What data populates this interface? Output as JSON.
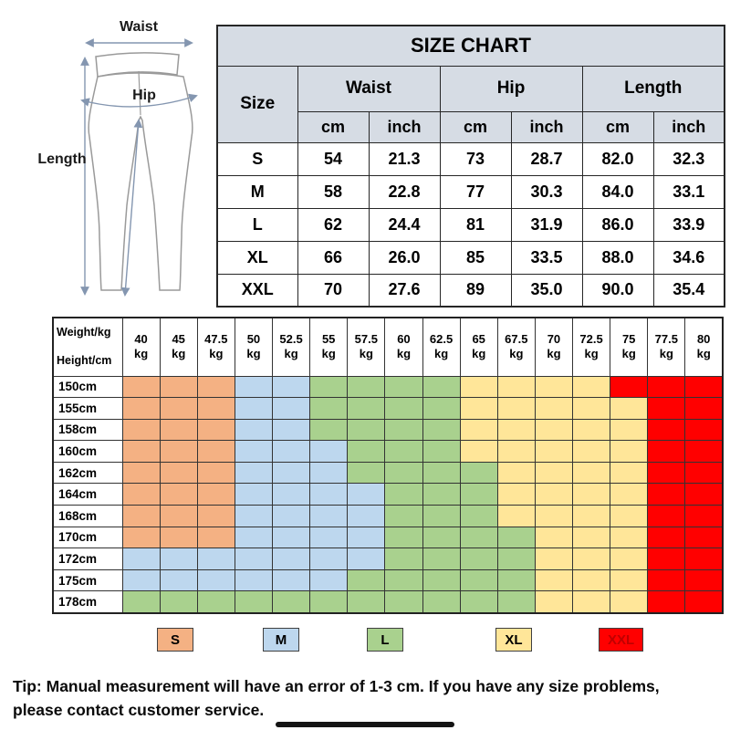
{
  "diagram": {
    "waist_label": "Waist",
    "hip_label": "Hip",
    "length_label": "Length"
  },
  "size_chart": {
    "title": "SIZE CHART",
    "size_header": "Size",
    "group_headers": [
      "Waist",
      "Hip",
      "Length"
    ],
    "unit_cm": "cm",
    "unit_inch": "inch",
    "rows": [
      {
        "size": "S",
        "cells": [
          "54",
          "21.3",
          "73",
          "28.7",
          "82.0",
          "32.3"
        ]
      },
      {
        "size": "M",
        "cells": [
          "58",
          "22.8",
          "77",
          "30.3",
          "84.0",
          "33.1"
        ]
      },
      {
        "size": "L",
        "cells": [
          "62",
          "24.4",
          "81",
          "31.9",
          "86.0",
          "33.9"
        ]
      },
      {
        "size": "XL",
        "cells": [
          "66",
          "26.0",
          "85",
          "33.5",
          "88.0",
          "34.6"
        ]
      },
      {
        "size": "XXL",
        "cells": [
          "70",
          "27.6",
          "89",
          "35.0",
          "90.0",
          "35.4"
        ]
      }
    ]
  },
  "matrix": {
    "corner_top": "Weight/kg",
    "corner_bottom": "Height/cm",
    "weight_unit": "kg",
    "weights": [
      "40",
      "45",
      "47.5",
      "50",
      "52.5",
      "55",
      "57.5",
      "60",
      "62.5",
      "65",
      "67.5",
      "70",
      "72.5",
      "75",
      "77.5",
      "80"
    ],
    "rows": [
      {
        "height": "150cm",
        "cells": [
          "S",
          "S",
          "S",
          "M",
          "M",
          "L",
          "L",
          "L",
          "L",
          "XL",
          "XL",
          "XL",
          "XL",
          "XXL",
          "XXL",
          "XXL"
        ]
      },
      {
        "height": "155cm",
        "cells": [
          "S",
          "S",
          "S",
          "M",
          "M",
          "L",
          "L",
          "L",
          "L",
          "XL",
          "XL",
          "XL",
          "XL",
          "XL",
          "XXL",
          "XXL"
        ]
      },
      {
        "height": "158cm",
        "cells": [
          "S",
          "S",
          "S",
          "M",
          "M",
          "L",
          "L",
          "L",
          "L",
          "XL",
          "XL",
          "XL",
          "XL",
          "XL",
          "XXL",
          "XXL"
        ]
      },
      {
        "height": "160cm",
        "cells": [
          "S",
          "S",
          "S",
          "M",
          "M",
          "M",
          "L",
          "L",
          "L",
          "XL",
          "XL",
          "XL",
          "XL",
          "XL",
          "XXL",
          "XXL"
        ]
      },
      {
        "height": "162cm",
        "cells": [
          "S",
          "S",
          "S",
          "M",
          "M",
          "M",
          "L",
          "L",
          "L",
          "L",
          "XL",
          "XL",
          "XL",
          "XL",
          "XXL",
          "XXL"
        ]
      },
      {
        "height": "164cm",
        "cells": [
          "S",
          "S",
          "S",
          "M",
          "M",
          "M",
          "M",
          "L",
          "L",
          "L",
          "XL",
          "XL",
          "XL",
          "XL",
          "XXL",
          "XXL"
        ]
      },
      {
        "height": "168cm",
        "cells": [
          "S",
          "S",
          "S",
          "M",
          "M",
          "M",
          "M",
          "L",
          "L",
          "L",
          "XL",
          "XL",
          "XL",
          "XL",
          "XXL",
          "XXL"
        ]
      },
      {
        "height": "170cm",
        "cells": [
          "S",
          "S",
          "S",
          "M",
          "M",
          "M",
          "M",
          "L",
          "L",
          "L",
          "L",
          "XL",
          "XL",
          "XL",
          "XXL",
          "XXL"
        ]
      },
      {
        "height": "172cm",
        "cells": [
          "M",
          "M",
          "M",
          "M",
          "M",
          "M",
          "M",
          "L",
          "L",
          "L",
          "L",
          "XL",
          "XL",
          "XL",
          "XXL",
          "XXL"
        ]
      },
      {
        "height": "175cm",
        "cells": [
          "M",
          "M",
          "M",
          "M",
          "M",
          "M",
          "L",
          "L",
          "L",
          "L",
          "L",
          "XL",
          "XL",
          "XL",
          "XXL",
          "XXL"
        ]
      },
      {
        "height": "178cm",
        "cells": [
          "L",
          "L",
          "L",
          "L",
          "L",
          "L",
          "L",
          "L",
          "L",
          "L",
          "L",
          "XL",
          "XL",
          "XL",
          "XXL",
          "XXL"
        ]
      }
    ]
  },
  "size_colors": {
    "S": "#F4B183",
    "M": "#BDD7EE",
    "L": "#A9D18E",
    "XL": "#FFE699",
    "XXL": "#FF0000"
  },
  "legend": [
    {
      "label": "S",
      "color": "#F4B183"
    },
    {
      "label": "M",
      "color": "#BDD7EE"
    },
    {
      "label": "L",
      "color": "#A9D18E"
    },
    {
      "label": "XL",
      "color": "#FFE699"
    },
    {
      "label": "XXL",
      "color": "#FF0000",
      "text_color": "#C00000"
    }
  ],
  "theme": {
    "header_bg": "#D6DCE4",
    "arrow_color": "#8496B0"
  },
  "tip": "Tip: Manual measurement will have an error of 1-3 cm. If you have any size problems, please contact customer service."
}
